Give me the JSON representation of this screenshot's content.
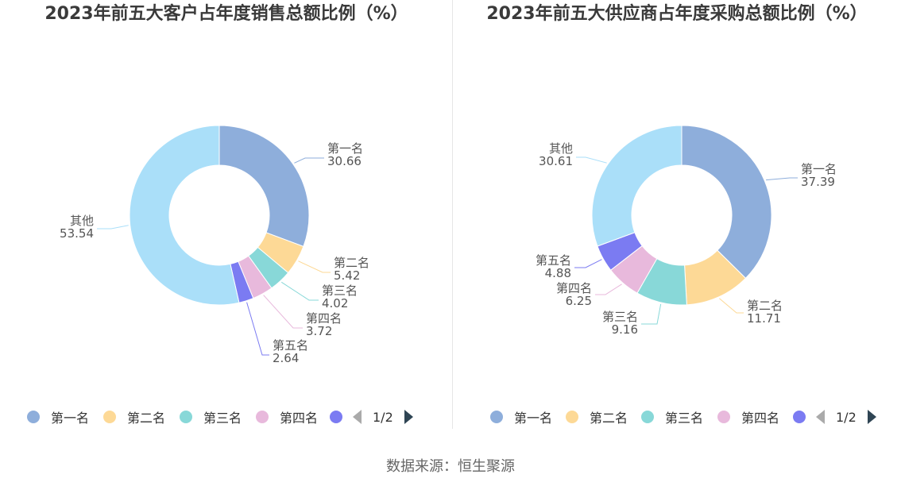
{
  "source_note": "数据来源：恒生聚源",
  "chart_data": [
    {
      "type": "pie",
      "title": "2023年前五大客户占年度销售总额比例（%）",
      "slices": [
        {
          "label": "第一名",
          "value": 30.66,
          "display": "30.66"
        },
        {
          "label": "第二名",
          "value": 5.42,
          "display": "5.42"
        },
        {
          "label": "第三名",
          "value": 4.02,
          "display": "4.02"
        },
        {
          "label": "第四名",
          "value": 3.72,
          "display": "3.72"
        },
        {
          "label": "第五名",
          "value": 2.64,
          "display": "2.64"
        },
        {
          "label": "其他",
          "value": 53.54,
          "display": "53.54"
        }
      ],
      "legend": {
        "position": "bottom",
        "visible_items": [
          "第一名",
          "第二名",
          "第三名",
          "第四名"
        ],
        "page": "1/2"
      }
    },
    {
      "type": "pie",
      "title": "2023年前五大供应商占年度采购总额比例（%）",
      "slices": [
        {
          "label": "第一名",
          "value": 37.39,
          "display": "37.39"
        },
        {
          "label": "第二名",
          "value": 11.71,
          "display": "11.71"
        },
        {
          "label": "第三名",
          "value": 9.16,
          "display": "9.16"
        },
        {
          "label": "第四名",
          "value": 6.25,
          "display": "6.25"
        },
        {
          "label": "第五名",
          "value": 4.88,
          "display": "4.88"
        },
        {
          "label": "其他",
          "value": 30.61,
          "display": "30.61"
        }
      ],
      "legend": {
        "position": "bottom",
        "visible_items": [
          "第一名",
          "第二名",
          "第三名",
          "第四名"
        ],
        "page": "1/2"
      }
    }
  ],
  "colors": [
    "#8eaedb",
    "#fdd996",
    "#88d8d8",
    "#e8b9dc",
    "#7b7bf2",
    "#aadff9"
  ]
}
